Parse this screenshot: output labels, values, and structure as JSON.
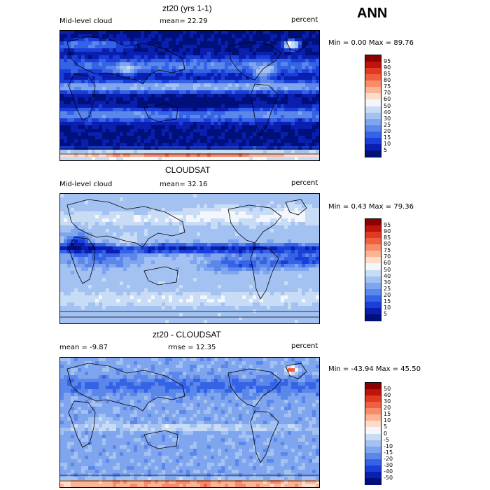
{
  "season": "ANN",
  "panels": [
    {
      "title": "zt20 (yrs 1-1)",
      "left": "Mid-level cloud",
      "mid": "mean=  22.29",
      "right": "percent",
      "minmax": "Min =   0.00 Max =  89.76",
      "colorbar": {
        "labels": [
          "95",
          "90",
          "85",
          "80",
          "75",
          "70",
          "60",
          "50",
          "40",
          "30",
          "25",
          "20",
          "15",
          "10",
          "5"
        ],
        "colors": [
          "#8b0000",
          "#c0130c",
          "#e03a23",
          "#f0603f",
          "#f78b6a",
          "#fbb595",
          "#fddccc",
          "#f3f6fb",
          "#c9dcf6",
          "#a3c2f2",
          "#7fa5ee",
          "#5b86ea",
          "#3563e6",
          "#1a3ed8",
          "#0a1fb0",
          "#00107a"
        ]
      },
      "field": "cam"
    },
    {
      "title": "CLOUDSAT",
      "left": "Mid-level cloud",
      "mid": "mean=  32.16",
      "right": "percent",
      "minmax": "Min =   0.43 Max =  79.36",
      "colorbar": {
        "labels": [
          "95",
          "90",
          "85",
          "80",
          "75",
          "70",
          "60",
          "50",
          "40",
          "30",
          "25",
          "20",
          "15",
          "10",
          "5"
        ],
        "colors": [
          "#8b0000",
          "#c0130c",
          "#e03a23",
          "#f0603f",
          "#f78b6a",
          "#fbb595",
          "#fddccc",
          "#f3f6fb",
          "#c9dcf6",
          "#a3c2f2",
          "#7fa5ee",
          "#5b86ea",
          "#3563e6",
          "#1a3ed8",
          "#0a1fb0",
          "#00107a"
        ]
      },
      "field": "obs"
    },
    {
      "title": "zt20 - CLOUDSAT",
      "left": "mean =  -9.87",
      "mid": "rmse =  12.35",
      "right": "percent",
      "minmax": "Min = -43.94 Max =  45.50",
      "colorbar": {
        "labels": [
          "50",
          "40",
          "30",
          "20",
          "15",
          "10",
          "5",
          "0",
          "-5",
          "-10",
          "-15",
          "-20",
          "-30",
          "-40",
          "-50"
        ],
        "colors": [
          "#8b0000",
          "#c0130c",
          "#e03a23",
          "#f0603f",
          "#f78b6a",
          "#fbb595",
          "#fddccc",
          "#f3f6fb",
          "#c9dcf6",
          "#a3c2f2",
          "#7fa5ee",
          "#5b86ea",
          "#3563e6",
          "#1a3ed8",
          "#0a1fb0",
          "#00107a"
        ]
      },
      "field": "diff"
    }
  ]
}
